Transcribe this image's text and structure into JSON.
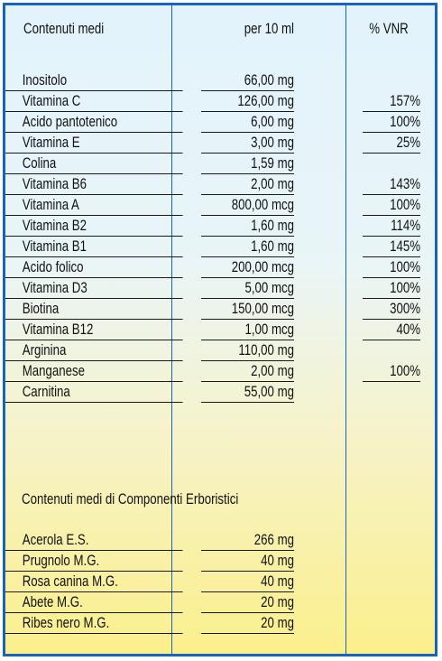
{
  "header": {
    "col1": "Contenuti medi",
    "col2": "per 10 ml",
    "col3": "% VNR"
  },
  "nutrients": [
    {
      "name": "Inositolo",
      "amount": "66,00 mg",
      "vnr": ""
    },
    {
      "name": "Vitamina C",
      "amount": "126,00 mg",
      "vnr": "157%"
    },
    {
      "name": "Acido pantotenico",
      "amount": "6,00 mg",
      "vnr": "100%"
    },
    {
      "name": "Vitamina E",
      "amount": "3,00 mg",
      "vnr": "25%"
    },
    {
      "name": "Colina",
      "amount": "1,59 mg",
      "vnr": ""
    },
    {
      "name": "Vitamina B6",
      "amount": "2,00 mg",
      "vnr": "143%"
    },
    {
      "name": "Vitamina A",
      "amount": "800,00 mcg",
      "vnr": "100%"
    },
    {
      "name": "Vitamina B2",
      "amount": "1,60 mg",
      "vnr": "114%"
    },
    {
      "name": "Vitamina B1",
      "amount": "1,60 mg",
      "vnr": "145%"
    },
    {
      "name": "Acido folico",
      "amount": "200,00 mcg",
      "vnr": "100%"
    },
    {
      "name": "Vitamina D3",
      "amount": "5,00 mcg",
      "vnr": "100%"
    },
    {
      "name": "Biotina",
      "amount": "150,00 mcg",
      "vnr": "300%"
    },
    {
      "name": "Vitamina B12",
      "amount": "1,00 mcg",
      "vnr": "40%"
    },
    {
      "name": "Arginina",
      "amount": "110,00 mg",
      "vnr": ""
    },
    {
      "name": "Manganese",
      "amount": "2,00 mg",
      "vnr": "100%"
    },
    {
      "name": "Carnitina",
      "amount": "55,00 mg",
      "vnr": ""
    }
  ],
  "herbal_section_title": "Contenuti medi di Componenti Erboristici",
  "herbals": [
    {
      "name": "Acerola E.S.",
      "amount": "266 mg"
    },
    {
      "name": "Prugnolo M.G.",
      "amount": "40 mg"
    },
    {
      "name": "Rosa canina M.G.",
      "amount": "40 mg"
    },
    {
      "name": "Abete M.G.",
      "amount": "20 mg"
    },
    {
      "name": "Ribes nero M.G.",
      "amount": "20 mg"
    }
  ]
}
